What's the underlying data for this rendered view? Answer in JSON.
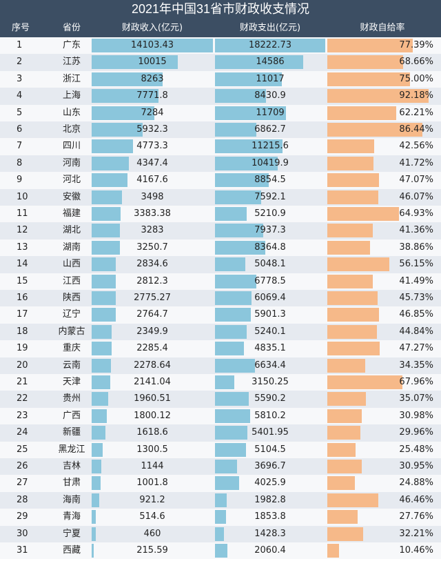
{
  "title": "2021年中国31省市财政收支情况",
  "columns": [
    "序号",
    "省份",
    "财政收入(亿元)",
    "财政支出(亿元)",
    "财政自给率"
  ],
  "colors": {
    "header_bg": "#3c4e63",
    "bar_blue": "#8bc6dc",
    "bar_orange": "#f6b989",
    "row_alt": "#e6eaf0"
  },
  "chart_data": {
    "type": "table",
    "title": "2021年中国31省市财政收支情况",
    "columns": [
      "序号",
      "省份",
      "财政收入(亿元)",
      "财政支出(亿元)",
      "财政自给率"
    ],
    "ranges": {
      "income_max": 14103.43,
      "expense_max": 18222.73,
      "ratio_max": 92.18
    },
    "rows": [
      {
        "rank": "1",
        "province": "广东",
        "income": "14103.43",
        "expense": "18222.73",
        "ratio": "77.39%"
      },
      {
        "rank": "2",
        "province": "江苏",
        "income": "10015",
        "expense": "14586",
        "ratio": "68.66%"
      },
      {
        "rank": "3",
        "province": "浙江",
        "income": "8263",
        "expense": "11017",
        "ratio": "75.00%"
      },
      {
        "rank": "4",
        "province": "上海",
        "income": "7771.8",
        "expense": "8430.9",
        "ratio": "92.18%"
      },
      {
        "rank": "5",
        "province": "山东",
        "income": "7284",
        "expense": "11709",
        "ratio": "62.21%"
      },
      {
        "rank": "6",
        "province": "北京",
        "income": "5932.3",
        "expense": "6862.7",
        "ratio": "86.44%"
      },
      {
        "rank": "7",
        "province": "四川",
        "income": "4773.3",
        "expense": "11215.6",
        "ratio": "42.56%"
      },
      {
        "rank": "8",
        "province": "河南",
        "income": "4347.4",
        "expense": "10419.9",
        "ratio": "41.72%"
      },
      {
        "rank": "9",
        "province": "河北",
        "income": "4167.6",
        "expense": "8854.5",
        "ratio": "47.07%"
      },
      {
        "rank": "10",
        "province": "安徽",
        "income": "3498",
        "expense": "7592.1",
        "ratio": "46.07%"
      },
      {
        "rank": "11",
        "province": "福建",
        "income": "3383.38",
        "expense": "5210.9",
        "ratio": "64.93%"
      },
      {
        "rank": "12",
        "province": "湖北",
        "income": "3283",
        "expense": "7937.3",
        "ratio": "41.36%"
      },
      {
        "rank": "13",
        "province": "湖南",
        "income": "3250.7",
        "expense": "8364.8",
        "ratio": "38.86%"
      },
      {
        "rank": "14",
        "province": "山西",
        "income": "2834.6",
        "expense": "5048.1",
        "ratio": "56.15%"
      },
      {
        "rank": "15",
        "province": "江西",
        "income": "2812.3",
        "expense": "6778.5",
        "ratio": "41.49%"
      },
      {
        "rank": "16",
        "province": "陕西",
        "income": "2775.27",
        "expense": "6069.4",
        "ratio": "45.73%"
      },
      {
        "rank": "17",
        "province": "辽宁",
        "income": "2764.7",
        "expense": "5901.3",
        "ratio": "46.85%"
      },
      {
        "rank": "18",
        "province": "内蒙古",
        "income": "2349.9",
        "expense": "5240.1",
        "ratio": "44.84%"
      },
      {
        "rank": "19",
        "province": "重庆",
        "income": "2285.4",
        "expense": "4835.1",
        "ratio": "47.27%"
      },
      {
        "rank": "20",
        "province": "云南",
        "income": "2278.64",
        "expense": "6634.4",
        "ratio": "34.35%"
      },
      {
        "rank": "21",
        "province": "天津",
        "income": "2141.04",
        "expense": "3150.25",
        "ratio": "67.96%"
      },
      {
        "rank": "22",
        "province": "贵州",
        "income": "1960.51",
        "expense": "5590.2",
        "ratio": "35.07%"
      },
      {
        "rank": "23",
        "province": "广西",
        "income": "1800.12",
        "expense": "5810.2",
        "ratio": "30.98%"
      },
      {
        "rank": "24",
        "province": "新疆",
        "income": "1618.6",
        "expense": "5401.95",
        "ratio": "29.96%"
      },
      {
        "rank": "25",
        "province": "黑龙江",
        "income": "1300.5",
        "expense": "5104.5",
        "ratio": "25.48%"
      },
      {
        "rank": "26",
        "province": "吉林",
        "income": "1144",
        "expense": "3696.7",
        "ratio": "30.95%"
      },
      {
        "rank": "27",
        "province": "甘肃",
        "income": "1001.8",
        "expense": "4025.9",
        "ratio": "24.88%"
      },
      {
        "rank": "28",
        "province": "海南",
        "income": "921.2",
        "expense": "1982.8",
        "ratio": "46.46%"
      },
      {
        "rank": "29",
        "province": "青海",
        "income": "514.6",
        "expense": "1853.8",
        "ratio": "27.76%"
      },
      {
        "rank": "30",
        "province": "宁夏",
        "income": "460",
        "expense": "1428.3",
        "ratio": "32.21%"
      },
      {
        "rank": "31",
        "province": "西藏",
        "income": "215.59",
        "expense": "2060.4",
        "ratio": "10.46%"
      }
    ]
  }
}
